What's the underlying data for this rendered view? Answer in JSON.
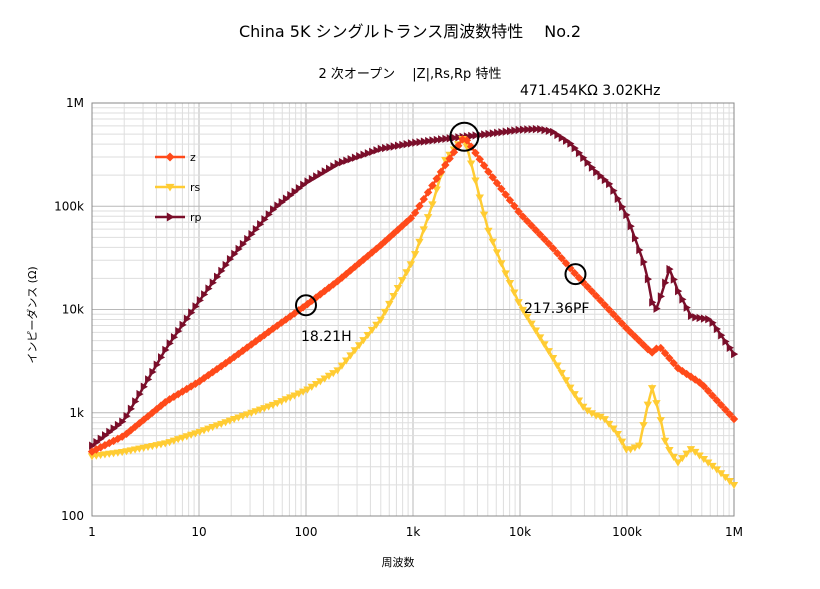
{
  "chart_data": {
    "type": "line",
    "title": "China 5K シングルトランス周波数特性　 No.2",
    "subtitle": "2 次オープン　 |Z|,Rs,Rp 特性",
    "xlabel": "周波数",
    "ylabel": "インピーダンス (Ω)",
    "x_scale": "log",
    "y_scale": "log",
    "xlim": [
      1,
      1000000
    ],
    "ylim": [
      100,
      1000000
    ],
    "grid": true,
    "legend_position": "left",
    "x_tick_labels": [
      "1",
      "10",
      "100",
      "1k",
      "10k",
      "100k",
      "1M"
    ],
    "y_tick_labels": [
      "100",
      "1k",
      "10k",
      "100k",
      "1M"
    ],
    "series": [
      {
        "name": "z",
        "color": "#ff4a1a",
        "marker": "diamond",
        "x": [
          1,
          2,
          5,
          10,
          20,
          50,
          100,
          200,
          500,
          1000,
          2000,
          3020,
          5000,
          10000,
          20000,
          33000,
          50000,
          100000,
          170000,
          200000,
          300000,
          500000,
          1000000
        ],
        "y": [
          420,
          600,
          1300,
          2000,
          3300,
          6600,
          11000,
          19000,
          42000,
          80000,
          250000,
          471454,
          220000,
          85000,
          40000,
          22000,
          14000,
          6500,
          3800,
          4400,
          2700,
          1900,
          870
        ]
      },
      {
        "name": "rs",
        "color": "#ffcc33",
        "marker": "triangle-down",
        "x": [
          1,
          2,
          5,
          10,
          20,
          50,
          100,
          200,
          500,
          1000,
          1500,
          2000,
          3020,
          4000,
          5000,
          7000,
          10000,
          20000,
          30000,
          40000,
          50000,
          60000,
          80000,
          100000,
          130000,
          170000,
          200000,
          230000,
          270000,
          300000,
          400000,
          500000,
          700000,
          1000000
        ],
        "y": [
          380,
          420,
          510,
          650,
          850,
          1200,
          1650,
          2600,
          8000,
          30000,
          100000,
          280000,
          471454,
          150000,
          60000,
          25000,
          11000,
          3500,
          1700,
          1100,
          950,
          900,
          650,
          430,
          480,
          1800,
          1000,
          500,
          380,
          330,
          450,
          370,
          280,
          200
        ]
      },
      {
        "name": "rp",
        "color": "#7a0e2a",
        "marker": "triangle-right",
        "x": [
          1,
          2,
          5,
          10,
          20,
          50,
          100,
          200,
          500,
          1000,
          2000,
          3020,
          5000,
          10000,
          15000,
          20000,
          30000,
          50000,
          70000,
          100000,
          150000,
          180000,
          200000,
          250000,
          300000,
          400000,
          600000,
          1000000
        ],
        "y": [
          480,
          850,
          4300,
          12000,
          32000,
          95000,
          170000,
          260000,
          360000,
          410000,
          450000,
          471454,
          500000,
          550000,
          560000,
          530000,
          400000,
          220000,
          160000,
          80000,
          25000,
          9000,
          12000,
          25000,
          15000,
          8500,
          8000,
          3700
        ]
      }
    ],
    "annotations": [
      {
        "text": "471.454KΩ 3.02KHz",
        "x": 3020,
        "y": 471454
      },
      {
        "text": "18.21H",
        "x": 100,
        "y": 11000
      },
      {
        "text": "217.36PF",
        "x": 33000,
        "y": 22000
      }
    ]
  }
}
